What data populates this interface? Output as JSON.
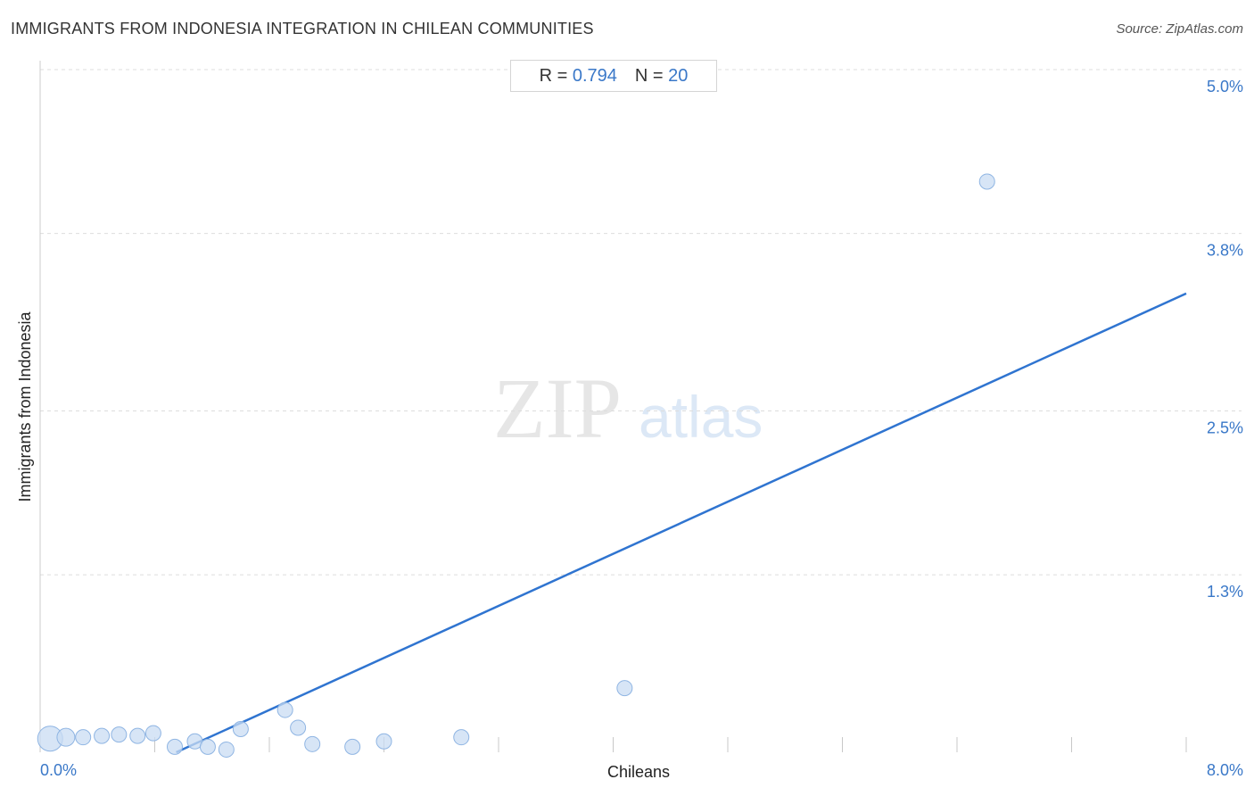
{
  "header": {
    "title": "IMMIGRANTS FROM INDONESIA INTEGRATION IN CHILEAN COMMUNITIES",
    "source": "Source: ZipAtlas.com"
  },
  "stats": {
    "r_label": "R = ",
    "r_value": "0.794",
    "n_label": "N = ",
    "n_value": "20"
  },
  "watermark": {
    "zip": "ZIP",
    "atlas": "atlas"
  },
  "colors": {
    "accent": "#3a78c8",
    "trend": "#2f74d0",
    "point_fill": "#c9dcf3",
    "point_stroke": "#8fb5e3",
    "grid": "#dddddd"
  },
  "chart_data": {
    "type": "scatter",
    "title": "IMMIGRANTS FROM INDONESIA INTEGRATION IN CHILEAN COMMUNITIES",
    "xlabel": "Chileans",
    "ylabel": "Immigrants from Indonesia",
    "xlim": [
      0,
      8
    ],
    "ylim": [
      0,
      5
    ],
    "x_tick_labels": [
      "0.0%",
      "8.0%"
    ],
    "y_ticks": [
      1.3,
      2.5,
      3.8,
      5.0
    ],
    "y_tick_labels": [
      "1.3%",
      "2.5%",
      "3.8%",
      "5.0%"
    ],
    "grid": true,
    "points": [
      {
        "x": 0.07,
        "y": 0.1,
        "size": "large"
      },
      {
        "x": 0.18,
        "y": 0.11,
        "size": "medium"
      },
      {
        "x": 0.3,
        "y": 0.11,
        "size": "small"
      },
      {
        "x": 0.43,
        "y": 0.12,
        "size": "small"
      },
      {
        "x": 0.55,
        "y": 0.13,
        "size": "small"
      },
      {
        "x": 0.68,
        "y": 0.12,
        "size": "small"
      },
      {
        "x": 0.79,
        "y": 0.14,
        "size": "small"
      },
      {
        "x": 0.94,
        "y": 0.04,
        "size": "small"
      },
      {
        "x": 1.08,
        "y": 0.08,
        "size": "small"
      },
      {
        "x": 1.17,
        "y": 0.04,
        "size": "small"
      },
      {
        "x": 1.3,
        "y": 0.02,
        "size": "small"
      },
      {
        "x": 1.4,
        "y": 0.17,
        "size": "small"
      },
      {
        "x": 1.71,
        "y": 0.31,
        "size": "small"
      },
      {
        "x": 1.8,
        "y": 0.18,
        "size": "small"
      },
      {
        "x": 1.9,
        "y": 0.06,
        "size": "small"
      },
      {
        "x": 2.18,
        "y": 0.04,
        "size": "small"
      },
      {
        "x": 2.4,
        "y": 0.08,
        "size": "small"
      },
      {
        "x": 2.94,
        "y": 0.11,
        "size": "small"
      },
      {
        "x": 4.08,
        "y": 0.47,
        "size": "small"
      },
      {
        "x": 6.61,
        "y": 4.18,
        "size": "small"
      }
    ],
    "trendline": {
      "x": [
        0.95,
        8.0
      ],
      "y": [
        0.0,
        3.36
      ]
    }
  }
}
